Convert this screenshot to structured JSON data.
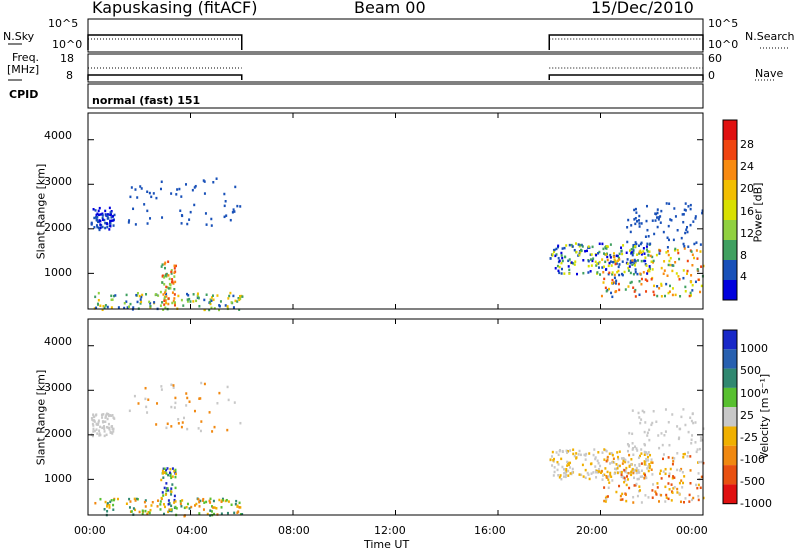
{
  "header": {
    "station": "Kapuskasing (fitACF)",
    "beam": "Beam 00",
    "date": "15/Dec/2010"
  },
  "strip": {
    "nsky_label": "N.Sky",
    "nsky_ticks": [
      "10^5",
      "10^0"
    ],
    "nsearch_label": "N.Search",
    "nsearch_ticks": [
      "10^5",
      "10^0"
    ],
    "freq_label_1": "Freq.",
    "freq_label_2": "[MHz]",
    "freq_ticks": [
      "18",
      "8"
    ],
    "nave_label": "Nave",
    "nave_ticks": [
      "60",
      "0"
    ],
    "cpid_label": "CPID",
    "cpid_value": "normal (fast) 151"
  },
  "chart_data": [
    {
      "type": "heatmap",
      "name": "power",
      "xlabel": "Time UT",
      "ylabel": "Slant Range [km]",
      "y_ticks": [
        "4000",
        "3000",
        "2000",
        "1000"
      ],
      "y_tick_values": [
        4000,
        3000,
        2000,
        1000
      ],
      "ylim": [
        200,
        4600
      ],
      "xlim": [
        0,
        24
      ],
      "colorbar": {
        "label": "Power [dB]",
        "ticks": [
          "28",
          "24",
          "20",
          "16",
          "12",
          "8",
          "4"
        ],
        "colors": [
          "#e01010",
          "#f04410",
          "#f88a10",
          "#f2be00",
          "#d8e000",
          "#90d040",
          "#40a060",
          "#1850b8",
          "#0000dd"
        ]
      },
      "data_segments": [
        {
          "start": 0.0,
          "end": 6.0
        },
        {
          "start": 18.0,
          "end": 24.0
        }
      ]
    },
    {
      "type": "heatmap",
      "name": "velocity",
      "xlabel": "Time UT",
      "ylabel": "Slant Range [km]",
      "y_ticks": [
        "4000",
        "3000",
        "2000",
        "1000"
      ],
      "y_tick_values": [
        4000,
        3000,
        2000,
        1000
      ],
      "ylim": [
        200,
        4600
      ],
      "xlim": [
        0,
        24
      ],
      "colorbar": {
        "label": "Velocity [m s⁻¹]",
        "ticks": [
          "1000",
          "500",
          "100",
          "25",
          "-25",
          "-100",
          "-500",
          "-1000"
        ],
        "colors": [
          "#1828c8",
          "#2860b0",
          "#308870",
          "#58c030",
          "#c8c8c8",
          "#f0b000",
          "#f08810",
          "#e85010",
          "#e01010"
        ]
      },
      "data_segments": [
        {
          "start": 0.0,
          "end": 6.0
        },
        {
          "start": 18.0,
          "end": 24.0
        }
      ]
    }
  ],
  "x_axis": {
    "ticks": [
      "00:00",
      "04:00",
      "08:00",
      "12:00",
      "16:00",
      "20:00",
      "00:00"
    ],
    "tick_hours": [
      0,
      4,
      8,
      12,
      16,
      20,
      24
    ],
    "label": "Time UT"
  }
}
